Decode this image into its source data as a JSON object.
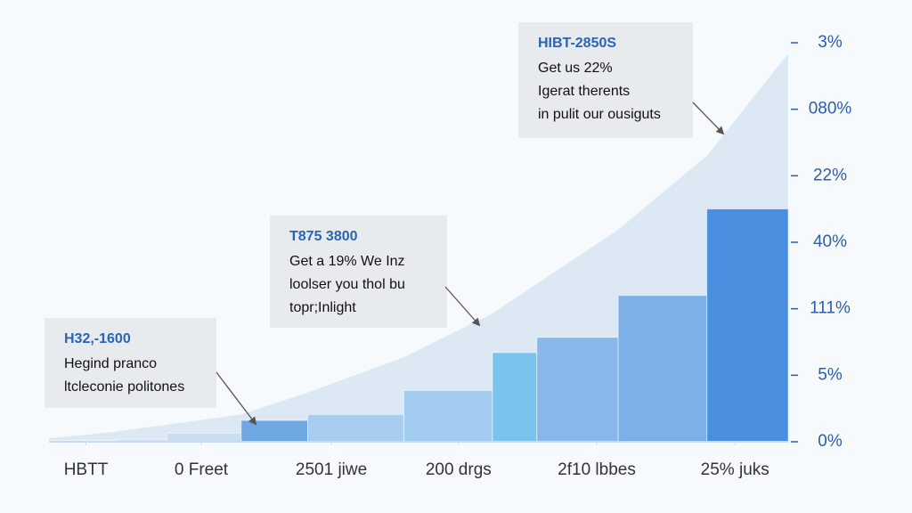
{
  "chart_data": {
    "type": "histogram",
    "bins": [
      0,
      9,
      16,
      26,
      35,
      48,
      60,
      66,
      77,
      89,
      100
    ],
    "values": [
      0.02,
      0.04,
      0.13,
      0.32,
      0.41,
      0.77,
      1.34,
      1.57,
      2.2,
      3.5
    ],
    "colors": [
      "#dce9f6",
      "#d2e4f5",
      "#c6ddf3",
      "#6fa7e2",
      "#a9cdf0",
      "#a3cdf0",
      "#79c3ec",
      "#8ab7e9",
      "#7eb0e8",
      "#4a8ee0"
    ],
    "curve": {
      "x": [
        0,
        9,
        26,
        35,
        48,
        60,
        77,
        89,
        100
      ],
      "values": [
        0.05,
        0.15,
        0.41,
        0.74,
        1.27,
        1.93,
        3.19,
        4.3,
        5.84
      ],
      "color": "#dce9f5"
    },
    "xlim": [
      0,
      100
    ],
    "xticks": [
      {
        "value": 5,
        "label": "HBTT"
      },
      {
        "value": 20.6,
        "label": "0 Freet"
      },
      {
        "value": 38.2,
        "label": "2501 jiwe"
      },
      {
        "value": 55.4,
        "label": "200 drgs"
      },
      {
        "value": 74.1,
        "label": "2f10 lbbes"
      },
      {
        "value": 92.8,
        "label": "25% juks"
      }
    ],
    "ylim": [
      0,
      6
    ],
    "yticks": [
      {
        "value": 0,
        "label": "0%"
      },
      {
        "value": 1,
        "label": "5%"
      },
      {
        "value": 2,
        "label": "111%"
      },
      {
        "value": 3,
        "label": "40%"
      },
      {
        "value": 4,
        "label": "22%"
      },
      {
        "value": 5,
        "label": "080%"
      },
      {
        "value": 6,
        "label": "3%"
      }
    ],
    "annotations": [
      {
        "title": "HIBT-2850S",
        "lines": [
          "Get us 22%",
          "Igerat therents",
          "in pulit our ousiguts"
        ]
      },
      {
        "title": "T875 3800",
        "lines": [
          "Get a 19% We Inz",
          "loolser you thol bu",
          "topr;Inlight"
        ]
      },
      {
        "title": "H32,-1600",
        "lines": [
          "Hegind pranco",
          "ltcleconie politones"
        ]
      }
    ]
  }
}
